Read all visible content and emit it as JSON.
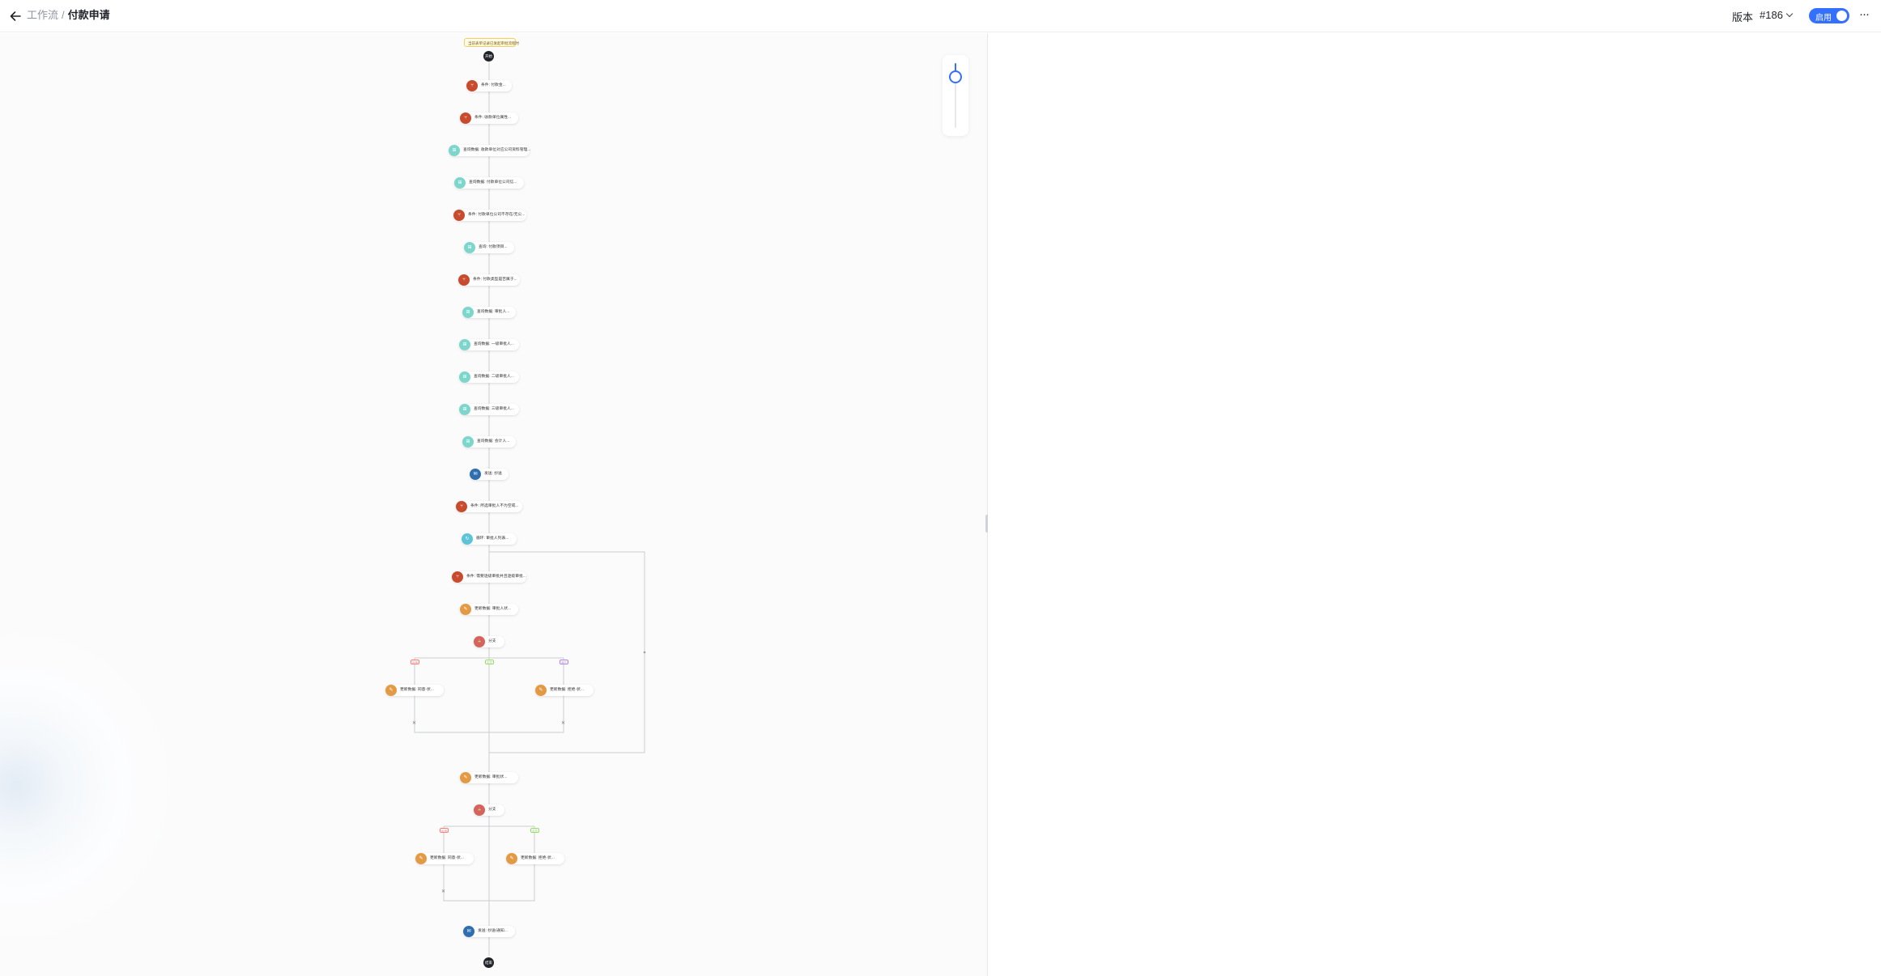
{
  "header": {
    "breadcrumb_parent": "工作流",
    "breadcrumb_separator": "/",
    "title": "付款申请",
    "version_label": "版本",
    "version_value": "#186",
    "enabled_label": "启用",
    "enabled": true,
    "more_icon": "more-horizontal-icon",
    "back_icon": "arrow-left-icon"
  },
  "zoom": {
    "level": 0.2
  },
  "colors": {
    "accent": "#3370ff",
    "condition": "#c84b2d",
    "query": "#7cd6cc",
    "calc": "#5bc4d8",
    "update": "#e39a45",
    "branch": "#d4655a",
    "notify": "#2f6fb0",
    "terminal": "#1f2329",
    "tag_red": "#ff7875",
    "tag_green": "#95de64",
    "tag_purple": "#b37feb"
  },
  "flow": {
    "trigger_label": "当前表单记录已发起审批流程时",
    "start_label": "开始",
    "end_label": "结束",
    "nodes": [
      {
        "type": "condition",
        "label": "条件: 付款金..."
      },
      {
        "type": "condition",
        "label": "条件: 收款单位属性..."
      },
      {
        "type": "query",
        "label": "查询数据: 收款单位对应公司资料管理..."
      },
      {
        "type": "query",
        "label": "查询数据: 付款单位公司信..."
      },
      {
        "type": "condition",
        "label": "条件: 付款单位公司不存在/无公..."
      },
      {
        "type": "query",
        "label": "查询: 付款项目..."
      },
      {
        "type": "condition",
        "label": "条件: 付款类型是否属于..."
      },
      {
        "type": "query",
        "label": "查询数据: 审批人..."
      },
      {
        "type": "query",
        "label": "查询数据: 一级审批人..."
      },
      {
        "type": "query",
        "label": "查询数据: 二级审批人..."
      },
      {
        "type": "query",
        "label": "查询数据: 三级审批人..."
      },
      {
        "type": "query",
        "label": "查询数据: 会计人..."
      },
      {
        "type": "notify",
        "label": "发送: 抄送"
      },
      {
        "type": "condition",
        "label": "条件: 所选审批人不为空或..."
      },
      {
        "type": "calc",
        "label": "循环: 审批人列表..."
      },
      {
        "type": "condition",
        "label": "条件: 需要逐级审批并且逐级审批..."
      },
      {
        "type": "update",
        "label": "更新数据: 审批人状..."
      },
      {
        "type": "branch",
        "label": "分支"
      },
      {
        "type": "update",
        "label": "更新数据: 同意-状..."
      },
      {
        "type": "update",
        "label": "更新数据: 拒绝-状..."
      },
      {
        "type": "update",
        "label": "更新数据: 审批状..."
      },
      {
        "type": "branch",
        "label": "分支"
      },
      {
        "type": "update",
        "label": "更新数据: 同意-状..."
      },
      {
        "type": "update",
        "label": "更新数据: 拒绝-状..."
      },
      {
        "type": "notify",
        "label": "发送: 抄送/通知..."
      }
    ],
    "branch_tags": [
      "拒绝",
      "同意",
      "其它",
      "拒绝",
      "同意"
    ],
    "end_marks": [
      "✕",
      "✕",
      "✕"
    ]
  }
}
